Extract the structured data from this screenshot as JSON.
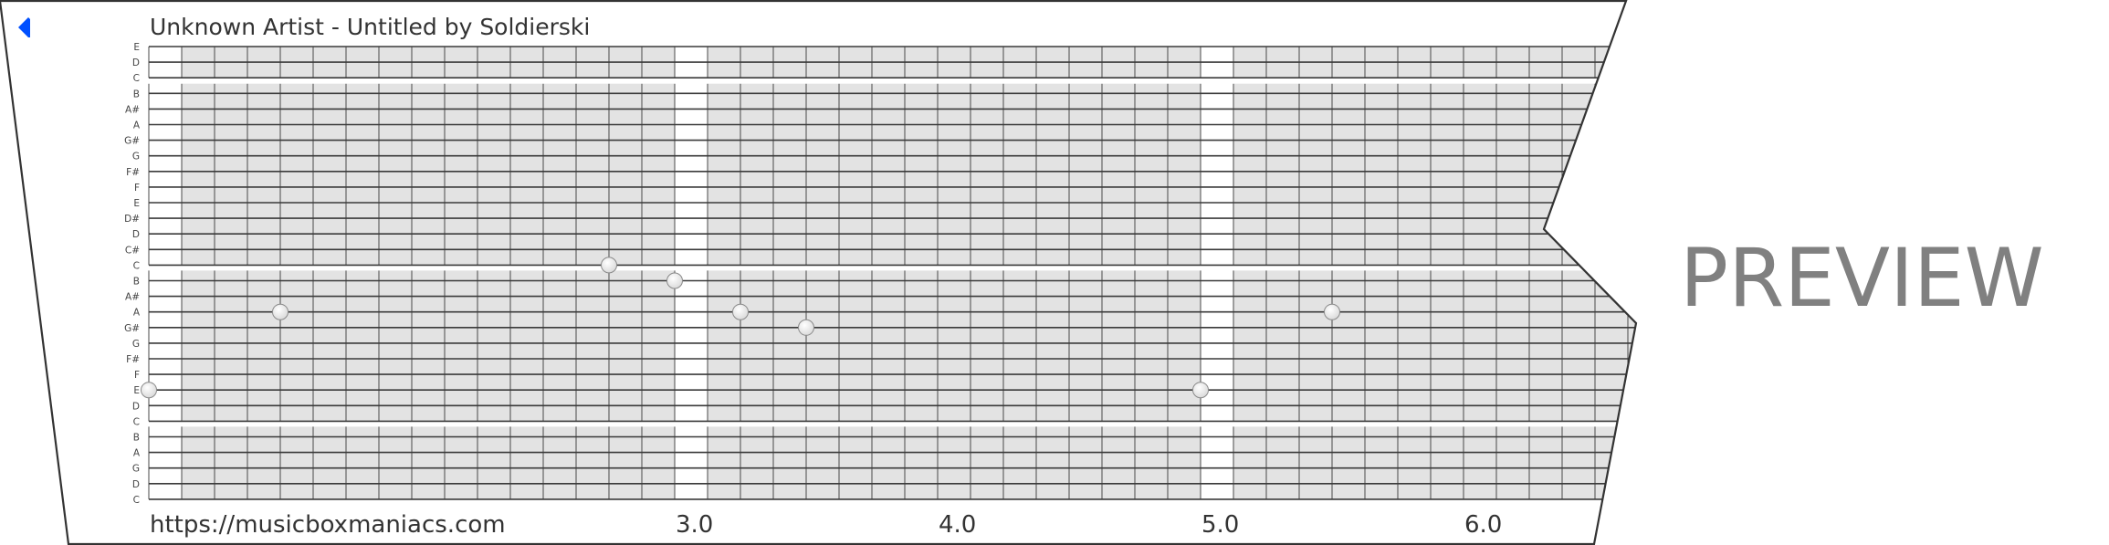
{
  "title": "Unknown Artist - Untitled by Soldierski",
  "back_icon": "blue-left-triangle-icon",
  "accent_color": "#0050ff",
  "footer_url": "https://musicboxmaniacs.com",
  "watermark": "PREVIEW",
  "chart_data": {
    "type": "music-box-strip",
    "track_labels": [
      "E",
      "D",
      "C",
      "B",
      "A#",
      "A",
      "G#",
      "G",
      "F#",
      "F",
      "E",
      "D#",
      "D",
      "C#",
      "C",
      "B",
      "A#",
      "A",
      "G#",
      "G",
      "F#",
      "F",
      "E",
      "D",
      "C",
      "B",
      "A",
      "G",
      "D",
      "C"
    ],
    "subdivisions_per_beat": 8,
    "beat_labels": [
      {
        "beat": 3,
        "label": "3.0"
      },
      {
        "beat": 4,
        "label": "4.0"
      },
      {
        "beat": 5,
        "label": "5.0"
      },
      {
        "beat": 6,
        "label": "6.0"
      }
    ],
    "notes": [
      {
        "beat": 1.0,
        "track": 22,
        "pitch": "E"
      },
      {
        "beat": 1.5,
        "track": 17,
        "pitch": "A"
      },
      {
        "beat": 2.75,
        "track": 14,
        "pitch": "C"
      },
      {
        "beat": 3.0,
        "track": 15,
        "pitch": "B"
      },
      {
        "beat": 3.25,
        "track": 17,
        "pitch": "A"
      },
      {
        "beat": 3.5,
        "track": 18,
        "pitch": "G#"
      },
      {
        "beat": 5.0,
        "track": 22,
        "pitch": "E"
      },
      {
        "beat": 5.5,
        "track": 17,
        "pitch": "A"
      }
    ],
    "colors": {
      "cell": "#e3e3e3",
      "line": "#3a3a3a",
      "note": "#eeeeee",
      "outline": "#333333"
    }
  }
}
